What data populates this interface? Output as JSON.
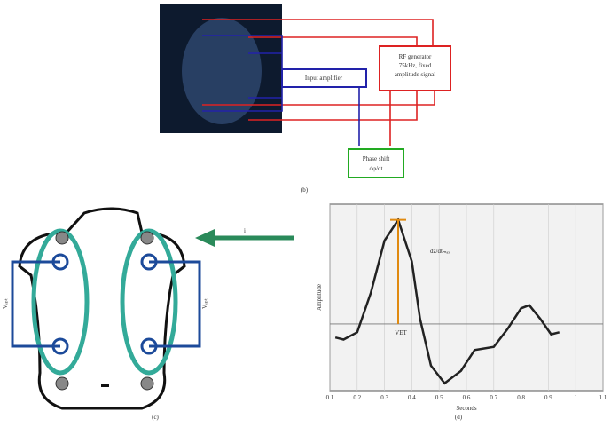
{
  "panel_b": {
    "label": "(b)",
    "amplifier": "Input amplifier",
    "generator": [
      "RF generator",
      "75kHz, fixed",
      "amplitude signal"
    ],
    "phase": [
      "Phase shift",
      "dφ/dt"
    ]
  },
  "panel_c": {
    "label": "(c)",
    "left_voltage": "Vₑₚₜ",
    "right_voltage": "Vₑₚₜ",
    "arrow_text": "i"
  },
  "panel_d": {
    "label": "(d)"
  },
  "chart_data": {
    "type": "line",
    "xlabel": "Seconds",
    "ylabel": "Amplitude",
    "annotations": [
      "dz/dtₘₐₓ",
      "VET"
    ],
    "x": [
      0.12,
      0.15,
      0.2,
      0.25,
      0.3,
      0.35,
      0.4,
      0.43,
      0.47,
      0.52,
      0.58,
      0.63,
      0.7,
      0.75,
      0.8,
      0.83,
      0.87,
      0.91,
      0.94
    ],
    "series": [
      {
        "color": "#222222",
        "values": [
          -0.13,
          -0.15,
          -0.08,
          0.3,
          0.8,
          1.0,
          0.6,
          0.05,
          -0.4,
          -0.57,
          -0.45,
          -0.25,
          -0.22,
          -0.05,
          0.15,
          0.18,
          0.05,
          -0.1,
          -0.08
        ]
      }
    ],
    "xlim": [
      0.1,
      1.1
    ],
    "ylim": [
      -0.64,
      1.15
    ],
    "xticks": [
      0.1,
      0.2,
      0.3,
      0.4,
      0.5,
      0.6,
      0.7,
      0.8,
      0.9,
      1,
      1.1
    ],
    "grid": true
  }
}
